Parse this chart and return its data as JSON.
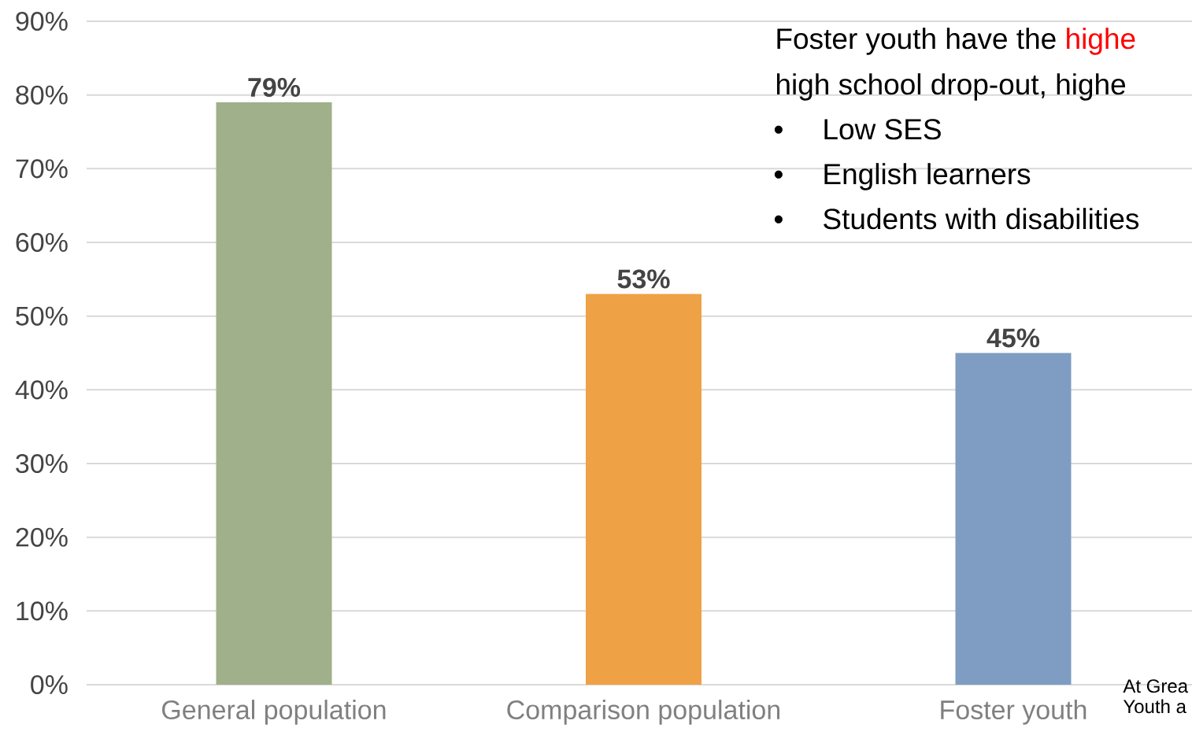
{
  "chart_data": {
    "type": "bar",
    "categories": [
      "General population",
      "Comparison population",
      "Foster youth"
    ],
    "values": [
      79,
      53,
      45
    ],
    "colors": [
      "#9fb08a",
      "#efa146",
      "#7f9dc2"
    ],
    "ylim": [
      0,
      90
    ],
    "yticks": [
      {
        "value": 0,
        "label": "0%"
      },
      {
        "value": 10,
        "label": "10%"
      },
      {
        "value": 20,
        "label": "20%"
      },
      {
        "value": 30,
        "label": "30%"
      },
      {
        "value": 40,
        "label": "40%"
      },
      {
        "value": 50,
        "label": "50%"
      },
      {
        "value": 60,
        "label": "60%"
      },
      {
        "value": 70,
        "label": "70%"
      },
      {
        "value": 80,
        "label": "80%"
      },
      {
        "value": 90,
        "label": "90%"
      }
    ],
    "value_labels": [
      "79%",
      "53%",
      "45%"
    ],
    "grid": "y",
    "annotations": [
      "Foster youth have the",
      "highe",
      "high school drop-out, highe",
      "Low SES",
      "English learners",
      "Students with disabilities",
      "At Grea",
      "Youth a",
      "•",
      "•",
      "•"
    ]
  }
}
